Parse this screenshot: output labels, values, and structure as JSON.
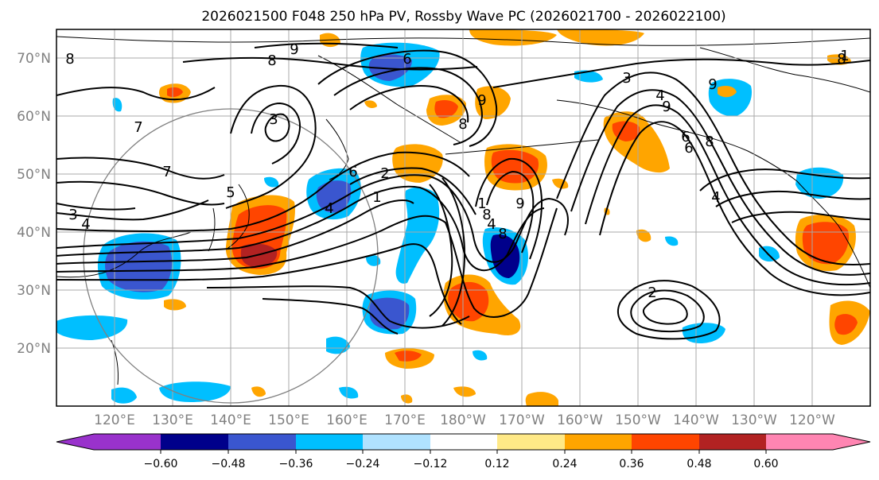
{
  "title": "2026021500 F048 250 hPa PV, Rossby Wave PC (2026021700 - 2026022100)",
  "lat_labels": [
    "70°N",
    "60°N",
    "50°N",
    "40°N",
    "30°N",
    "20°N"
  ],
  "lon_labels": [
    "120°E",
    "130°E",
    "140°E",
    "150°E",
    "160°E",
    "170°E",
    "180°W",
    "170°W",
    "160°W",
    "150°W",
    "140°W",
    "130°W",
    "120°W"
  ],
  "map": {
    "lon_range_east_deg": [
      110,
      250
    ],
    "lat_range": [
      10,
      75
    ],
    "grid_lons_east": [
      120,
      130,
      140,
      150,
      160,
      170,
      180,
      190,
      200,
      210,
      220,
      230,
      240
    ],
    "grid_lats": [
      20,
      30,
      40,
      50,
      60,
      70
    ]
  },
  "pv_contour_labels": [
    "8",
    "9",
    "8",
    "6",
    "9",
    "7",
    "3",
    "4",
    "3",
    "4",
    "5",
    "6",
    "7",
    "8",
    "8",
    "9",
    "8",
    "9",
    "6",
    "4",
    "3",
    "4",
    "1",
    "2",
    "1",
    "4",
    "6",
    "8",
    "9",
    "2",
    "1",
    "8"
  ],
  "colorbar": {
    "ticks": [
      "−0.60",
      "−0.48",
      "−0.36",
      "−0.24",
      "−0.12",
      "0.12",
      "0.24",
      "0.36",
      "0.48",
      "0.60"
    ],
    "colors": [
      "#9932cc",
      "#00008b",
      "#3a56cf",
      "#00bfff",
      "#b0e2ff",
      "#ffffff",
      "#ffe987",
      "#ffa500",
      "#ff4500",
      "#b22222",
      "#ff85b2"
    ]
  }
}
